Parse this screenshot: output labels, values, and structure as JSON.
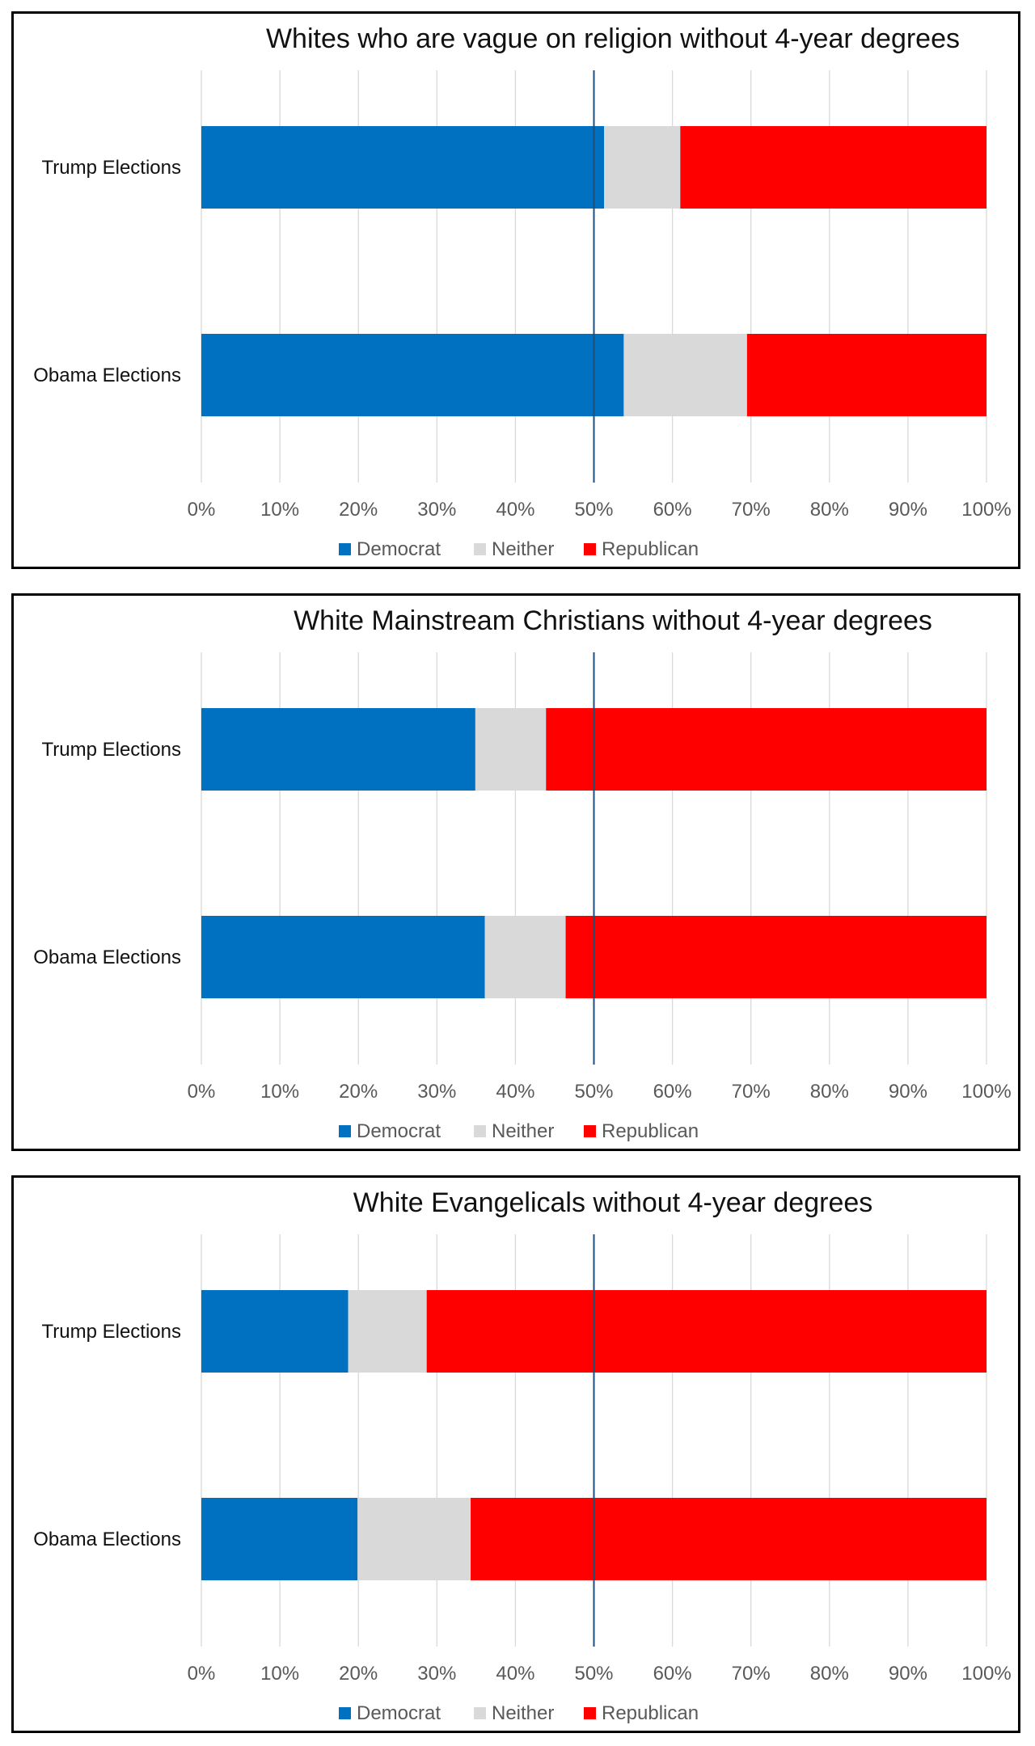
{
  "colors": {
    "democrat": "#0070C0",
    "neither": "#D9D9D9",
    "republican": "#FF0000",
    "gridline": "#D9D9D9",
    "reference_line": "#1F4E79",
    "tick_text": "#595959"
  },
  "chart_data": [
    {
      "type": "bar",
      "orientation": "horizontal",
      "stacked": true,
      "title": "Whites who are vague on religion without 4-year degrees",
      "categories": [
        "Trump Elections",
        "Obama Elections"
      ],
      "series": [
        {
          "name": "Democrat",
          "values": [
            51.3,
            53.8
          ]
        },
        {
          "name": "Neither",
          "values": [
            9.7,
            15.7
          ]
        },
        {
          "name": "Republican",
          "values": [
            39.0,
            30.5
          ]
        }
      ],
      "xlim": [
        0,
        100
      ],
      "xticks": [
        "0%",
        "10%",
        "20%",
        "30%",
        "40%",
        "50%",
        "60%",
        "70%",
        "80%",
        "90%",
        "100%"
      ],
      "reference_line_x": 50,
      "grid": true,
      "legend": "bottom"
    },
    {
      "type": "bar",
      "orientation": "horizontal",
      "stacked": true,
      "title": "White Mainstream Christians without 4-year degrees",
      "categories": [
        "Trump Elections",
        "Obama Elections"
      ],
      "series": [
        {
          "name": "Democrat",
          "values": [
            34.9,
            36.1
          ]
        },
        {
          "name": "Neither",
          "values": [
            9.0,
            10.3
          ]
        },
        {
          "name": "Republican",
          "values": [
            56.1,
            53.6
          ]
        }
      ],
      "xlim": [
        0,
        100
      ],
      "xticks": [
        "0%",
        "10%",
        "20%",
        "30%",
        "40%",
        "50%",
        "60%",
        "70%",
        "80%",
        "90%",
        "100%"
      ],
      "reference_line_x": 50,
      "grid": true,
      "legend": "bottom"
    },
    {
      "type": "bar",
      "orientation": "horizontal",
      "stacked": true,
      "title": "White Evangelicals without 4-year degrees",
      "categories": [
        "Trump Elections",
        "Obama Elections"
      ],
      "series": [
        {
          "name": "Democrat",
          "values": [
            18.7,
            19.9
          ]
        },
        {
          "name": "Neither",
          "values": [
            10.0,
            14.4
          ]
        },
        {
          "name": "Republican",
          "values": [
            71.3,
            65.7
          ]
        }
      ],
      "xlim": [
        0,
        100
      ],
      "xticks": [
        "0%",
        "10%",
        "20%",
        "30%",
        "40%",
        "50%",
        "60%",
        "70%",
        "80%",
        "90%",
        "100%"
      ],
      "reference_line_x": 50,
      "grid": true,
      "legend": "bottom"
    }
  ]
}
